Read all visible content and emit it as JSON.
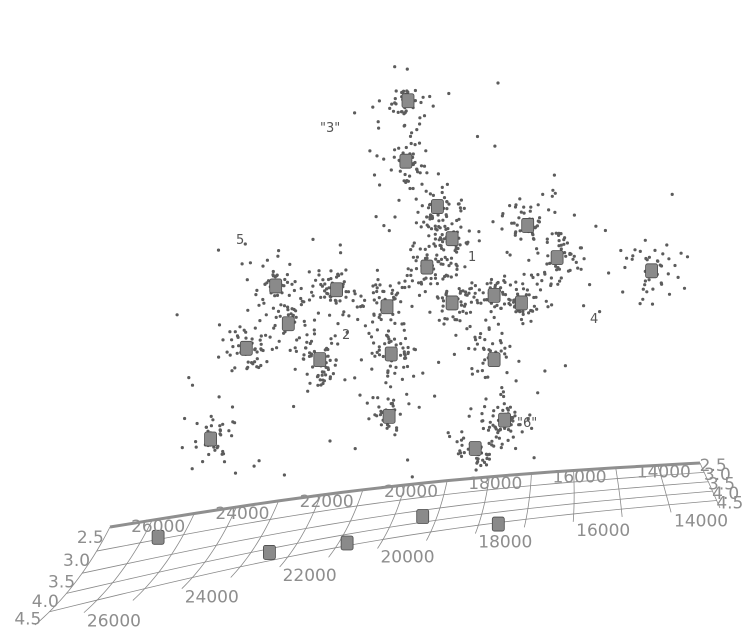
{
  "chart_data": {
    "type": "scatter",
    "projection": "3d",
    "title": "",
    "xlabel": "",
    "ylabel": "",
    "x_ticks": [
      "26000",
      "24000",
      "22000",
      "20000",
      "18000",
      "16000",
      "14000"
    ],
    "y_ticks": [
      "4.5",
      "4.0",
      "3.5",
      "3.0",
      "2.5"
    ],
    "x_range": [
      13000,
      27000
    ],
    "y_range": [
      2.3,
      4.7
    ],
    "cluster_labels": [
      "1",
      "2",
      "\"3\"",
      "4",
      "5",
      "\"6\""
    ],
    "cluster_centers": [
      [
        180,
        48
      ],
      [
        179,
        80
      ],
      [
        194,
        104
      ],
      [
        237,
        114
      ],
      [
        201,
        121
      ],
      [
        251,
        131
      ],
      [
        189,
        136
      ],
      [
        296,
        138
      ],
      [
        221,
        151
      ],
      [
        201,
        155
      ],
      [
        234,
        155
      ],
      [
        221,
        185
      ],
      [
        170,
        157
      ],
      [
        117,
        146
      ],
      [
        146,
        148
      ],
      [
        123,
        166
      ],
      [
        138,
        185
      ],
      [
        103,
        179
      ],
      [
        86,
        227
      ],
      [
        61,
        279
      ],
      [
        172,
        182
      ],
      [
        171,
        215
      ],
      [
        212,
        232
      ],
      [
        226,
        217
      ],
      [
        187,
        268
      ],
      [
        223,
        272
      ],
      [
        151,
        282
      ],
      [
        114,
        287
      ],
      [
        72,
        339
      ]
    ]
  },
  "colors": {
    "points": "#5c5c5c",
    "centers": "#8a8a8a",
    "grid": "#8a8a8a"
  }
}
